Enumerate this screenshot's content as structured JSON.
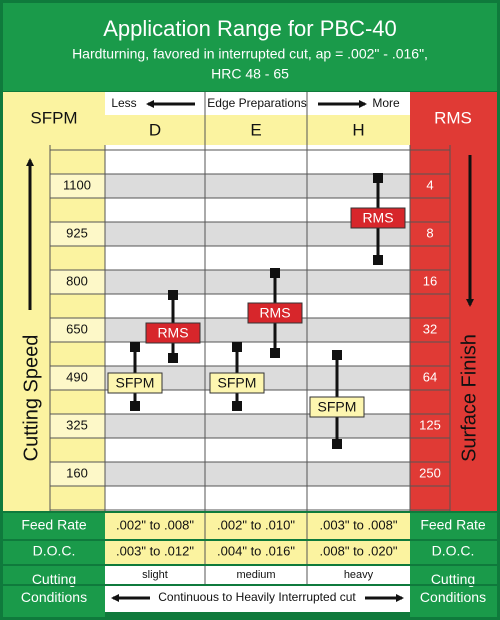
{
  "header": {
    "title": "Application Range for PBC-40",
    "subtitle": "Hardturning, favored in interrupted cut, ap = .002\" - .016\",",
    "subtitle2": "HRC 48 - 65"
  },
  "sfpm_header": "SFPM",
  "rms_header": "RMS",
  "edge_prep": {
    "less": "Less",
    "label": "Edge Preparations",
    "more": "More"
  },
  "columns": [
    "D",
    "E",
    "H"
  ],
  "cutting_speed": "Cutting Speed",
  "surface_finish": "Surface Finish",
  "speed_labels": [
    "1100",
    "925",
    "800",
    "650",
    "490",
    "325",
    "160"
  ],
  "rms_labels": [
    "4",
    "8",
    "16",
    "32",
    "64",
    "125",
    "250"
  ],
  "range_tags": {
    "sfpm": "SFPM",
    "rms": "RMS"
  },
  "feed_rate": {
    "label": "Feed Rate",
    "values": [
      ".002\" to .008\"",
      ".002\" to .010\"",
      ".003\" to .008\""
    ]
  },
  "doc": {
    "label": "D.O.C.",
    "values": [
      ".003\" to .012\"",
      ".004\" to .016\"",
      ".008\" to .020\""
    ]
  },
  "cutting_conditions": {
    "label": "Cutting Conditions",
    "values": [
      "slight",
      "medium",
      "heavy"
    ],
    "note": "Continuous to Heavily Interrupted cut"
  }
}
